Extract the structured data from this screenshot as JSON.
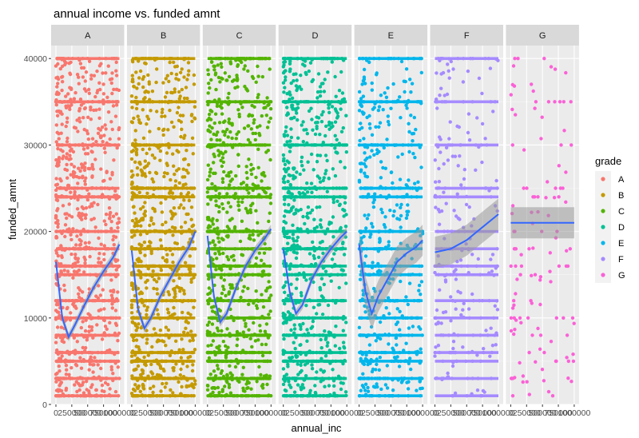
{
  "chart_data": {
    "type": "scatter",
    "title": "annual income vs. funded amnt",
    "xlabel": "annual_inc",
    "ylabel": "funded_amnt",
    "facet_by": "grade",
    "facets": [
      "A",
      "B",
      "C",
      "D",
      "E",
      "F",
      "G"
    ],
    "x_tick_labels": [
      "0",
      "250000",
      "500000",
      "750000",
      "1000000"
    ],
    "xlim": [
      0,
      1000000
    ],
    "y_ticks": [
      0,
      10000,
      20000,
      30000,
      40000
    ],
    "ylim": [
      0,
      41500
    ],
    "grid": true,
    "legend": {
      "title": "grade",
      "position": "right"
    },
    "series": [
      {
        "name": "A",
        "color": "#F8766D",
        "density": 1.0,
        "smooth": {
          "x": [
            0,
            100000,
            200000,
            300000,
            450000,
            600000,
            750000,
            900000,
            1000000
          ],
          "y": [
            16500,
            10000,
            7800,
            9200,
            11500,
            13600,
            15400,
            17000,
            18500
          ]
        }
      },
      {
        "name": "B",
        "color": "#C49A00",
        "density": 1.0,
        "smooth": {
          "x": [
            0,
            100000,
            200000,
            300000,
            450000,
            600000,
            750000,
            900000,
            1000000
          ],
          "y": [
            17800,
            11000,
            8800,
            10000,
            12500,
            14500,
            16500,
            18200,
            20000
          ]
        }
      },
      {
        "name": "C",
        "color": "#53B400",
        "density": 0.95,
        "smooth": {
          "x": [
            0,
            100000,
            200000,
            300000,
            450000,
            600000,
            750000,
            900000,
            1000000
          ],
          "y": [
            19500,
            12500,
            9500,
            10500,
            13500,
            16000,
            17800,
            19200,
            20300
          ]
        }
      },
      {
        "name": "D",
        "color": "#00C094",
        "density": 0.85,
        "smooth": {
          "x": [
            0,
            100000,
            200000,
            300000,
            450000,
            600000,
            750000,
            900000,
            1000000
          ],
          "y": [
            18000,
            13000,
            10500,
            11500,
            14500,
            16500,
            18000,
            19300,
            20000
          ]
        }
      },
      {
        "name": "E",
        "color": "#00B6EB",
        "density": 0.55,
        "smooth": {
          "x": [
            0,
            100000,
            200000,
            300000,
            450000,
            600000,
            750000,
            900000,
            1000000
          ],
          "y": [
            18500,
            13000,
            10500,
            12500,
            14500,
            16500,
            17500,
            18200,
            19000
          ]
        }
      },
      {
        "name": "F",
        "color": "#A58AFF",
        "density": 0.22,
        "smooth": {
          "x": [
            0,
            250000,
            500000,
            750000,
            1000000
          ],
          "y": [
            17600,
            18000,
            19000,
            20500,
            22000
          ]
        }
      },
      {
        "name": "G",
        "color": "#FB61D7",
        "density": 0.08,
        "smooth": {
          "x": [
            0,
            1000000
          ],
          "y": [
            21000,
            21000
          ]
        }
      }
    ]
  }
}
